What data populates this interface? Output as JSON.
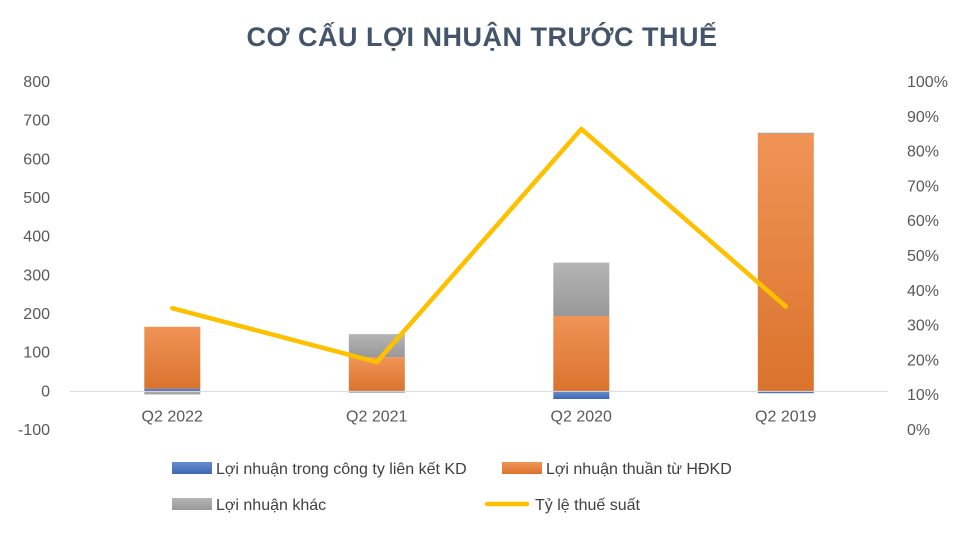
{
  "chart_data": {
    "type": "bar",
    "title": "CƠ CẤU LỢI NHUẬN TRƯỚC THUẾ",
    "categories": [
      "Q2 2022",
      "Q2 2021",
      "Q2 2020",
      "Q2 2019"
    ],
    "ylim": [
      -100,
      800
    ],
    "y_ticks": [
      "-100",
      "0",
      "100",
      "200",
      "300",
      "400",
      "500",
      "600",
      "700",
      "800"
    ],
    "y2lim": [
      0,
      1
    ],
    "y2_ticks": [
      "0%",
      "10%",
      "20%",
      "30%",
      "40%",
      "50%",
      "60%",
      "70%",
      "80%",
      "90%",
      "100%"
    ],
    "series": [
      {
        "name": "Lợi nhuận trong công ty liên kết KD",
        "kind": "stacked-bar",
        "axis": "left",
        "color": "#4472c4",
        "values": [
          7,
          -3,
          -20,
          -5
        ]
      },
      {
        "name": "Lợi nhuận thuần từ HĐKD",
        "kind": "stacked-bar",
        "axis": "left",
        "color": "#ed7d31",
        "values": [
          160,
          88,
          195,
          667
        ]
      },
      {
        "name": "Lợi nhuận khác",
        "kind": "stacked-bar",
        "axis": "left",
        "color": "#a5a5a5",
        "values": [
          -8,
          60,
          138,
          2
        ]
      },
      {
        "name": "Tỷ lệ thuế suất",
        "kind": "line",
        "axis": "right",
        "color": "#ffc000",
        "values": [
          0.35,
          0.195,
          0.865,
          0.355
        ]
      }
    ],
    "grid": false,
    "legend_position": "bottom"
  }
}
